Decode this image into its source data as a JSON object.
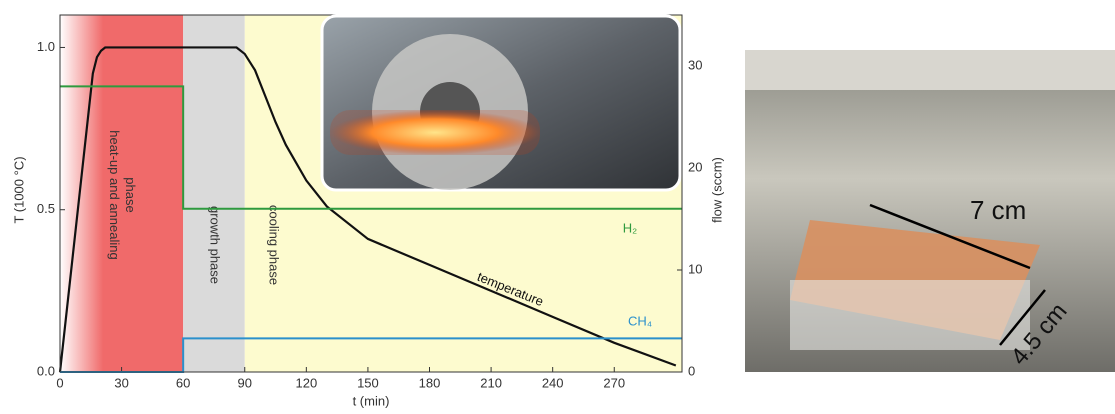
{
  "chart_data": {
    "type": "line",
    "xlabel": "t (min)",
    "ylabel": "T (1000 °C)",
    "y2label": "flow (sccm)",
    "xlim": [
      0,
      303
    ],
    "ylim": [
      0,
      1.1
    ],
    "y2lim": [
      0,
      35
    ],
    "xticks": [
      0,
      30,
      60,
      90,
      120,
      150,
      180,
      210,
      240,
      270
    ],
    "yticks": [
      {
        "value": 0,
        "label": "0.0"
      },
      0.5,
      {
        "value": 1,
        "label": "1.0"
      }
    ],
    "y2ticks": [
      0,
      10,
      20,
      30
    ],
    "phases": [
      {
        "label": [
          "heat-up and annealing",
          "phase"
        ],
        "start": 0,
        "end": 60,
        "color": "#f06a6a"
      },
      {
        "label": [
          "growth phase"
        ],
        "start": 60,
        "end": 90,
        "color": "#dadada"
      },
      {
        "label": [
          "cooling phase"
        ],
        "start": 90,
        "end": 303,
        "color": "#fdfbcf"
      }
    ],
    "series": [
      {
        "name": "temperature",
        "color": "#111111",
        "axis": "y",
        "x": [
          0,
          16,
          18,
          20,
          22,
          60,
          86,
          90,
          95,
          100,
          105,
          110,
          120,
          130,
          150,
          180,
          210,
          240,
          270,
          300
        ],
        "values": [
          0,
          0.92,
          0.97,
          0.99,
          1.0,
          1.0,
          1.0,
          0.98,
          0.93,
          0.85,
          0.77,
          0.7,
          0.59,
          0.51,
          0.41,
          0.33,
          0.25,
          0.17,
          0.09,
          0.02
        ]
      },
      {
        "name": "H₂",
        "color": "#2e9a3e",
        "axis": "y2",
        "x": [
          0,
          60,
          60,
          303
        ],
        "values": [
          28,
          28,
          16,
          16
        ]
      },
      {
        "name": "CH₄",
        "color": "#2a90cc",
        "axis": "y2",
        "x": [
          0,
          60,
          60,
          303
        ],
        "values": [
          0,
          0,
          3.3,
          3.3
        ]
      }
    ]
  },
  "photo": {
    "annotations": [
      "7 cm",
      "4.5 cm"
    ]
  }
}
